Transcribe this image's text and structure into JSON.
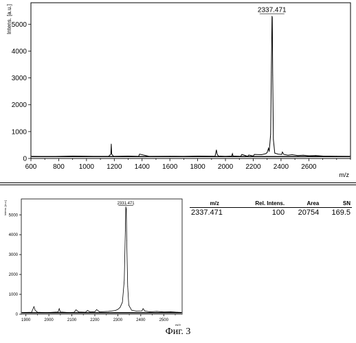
{
  "chart_data": [
    {
      "type": "line",
      "title": "",
      "xlabel": "m/z",
      "ylabel": "Intens. [a.u.]",
      "xlim": [
        600,
        2900
      ],
      "ylim": [
        0,
        5800
      ],
      "xticks": [
        600,
        800,
        1000,
        1200,
        1400,
        1600,
        1800,
        2000,
        2200,
        2400,
        2600
      ],
      "yticks": [
        0,
        1000,
        2000,
        3000,
        4000,
        5000
      ],
      "peak_label": "2337.471",
      "baseline": 70,
      "series": [
        {
          "x": [
            600,
            750,
            900,
            1050,
            1160,
            1175,
            1178,
            1181,
            1195,
            1300,
            1375,
            1382,
            1450,
            1600,
            1700,
            1800,
            1925,
            1935,
            1940,
            1950,
            2000,
            2045,
            2050,
            2055,
            2110,
            2118,
            2160,
            2168,
            2200,
            2208,
            2260,
            2290,
            2300,
            2310,
            2315,
            2325,
            2330,
            2335,
            2337,
            2340,
            2345,
            2355,
            2380,
            2405,
            2410,
            2420,
            2450,
            2480,
            2520,
            2560,
            2600,
            2650,
            2700,
            2800,
            2900
          ],
          "y": [
            80,
            75,
            90,
            80,
            85,
            160,
            540,
            160,
            80,
            90,
            80,
            160,
            80,
            85,
            80,
            90,
            85,
            320,
            160,
            90,
            80,
            90,
            180,
            90,
            80,
            150,
            80,
            130,
            90,
            150,
            140,
            180,
            220,
            380,
            260,
            900,
            3200,
            5300,
            5250,
            3100,
            700,
            200,
            160,
            150,
            240,
            150,
            120,
            140,
            110,
            120,
            100,
            110,
            90,
            85,
            80
          ]
        }
      ]
    },
    {
      "type": "line",
      "title": "",
      "xlabel": "m/z",
      "ylabel": "Intens. [a.u.]",
      "xlim": [
        1880,
        2580
      ],
      "ylim": [
        0,
        5800
      ],
      "xticks": [
        1900,
        2000,
        2100,
        2200,
        2300,
        2400,
        2500
      ],
      "yticks": [
        0,
        1000,
        2000,
        3000,
        4000,
        5000
      ],
      "peak_label": "2331.471",
      "baseline": 70,
      "series": [
        {
          "x": [
            1880,
            1900,
            1925,
            1935,
            1940,
            1950,
            1990,
            2040,
            2045,
            2050,
            2090,
            2110,
            2118,
            2130,
            2160,
            2168,
            2180,
            2200,
            2208,
            2220,
            2260,
            2290,
            2300,
            2310,
            2320,
            2328,
            2333,
            2335,
            2337,
            2339,
            2343,
            2348,
            2360,
            2380,
            2405,
            2410,
            2418,
            2440,
            2470,
            2500,
            2530,
            2560,
            2580
          ],
          "y": [
            80,
            90,
            100,
            380,
            200,
            100,
            80,
            110,
            280,
            110,
            80,
            100,
            220,
            110,
            100,
            190,
            110,
            120,
            230,
            120,
            140,
            190,
            240,
            340,
            600,
            1700,
            4200,
            5400,
            5300,
            3700,
            1400,
            450,
            200,
            160,
            170,
            280,
            160,
            120,
            140,
            110,
            120,
            100,
            90
          ]
        }
      ]
    }
  ],
  "table": {
    "headers": [
      "m/z",
      "Rel. Intens.",
      "Area",
      "SN"
    ],
    "rows": [
      [
        "2337.471",
        "100",
        "20754",
        "169.5"
      ]
    ]
  },
  "caption": "Фиг. 3"
}
